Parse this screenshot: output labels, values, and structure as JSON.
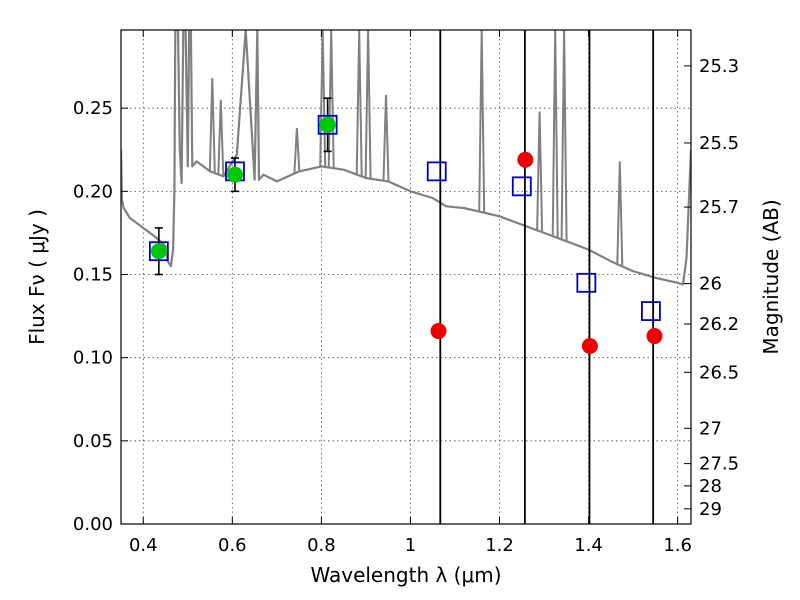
{
  "chart_data": {
    "type": "scatter",
    "title": "",
    "xlabel": "Wavelength  λ (μm)",
    "ylabel": "Flux  Fν  ( μJy )",
    "ylabel_right": "Magnitude (AB)",
    "xlim": [
      0.35,
      1.63
    ],
    "ylim": [
      0.0,
      0.297
    ],
    "grid": true,
    "x_ticks": [
      0.4,
      0.6,
      0.8,
      1.0,
      1.2,
      1.4,
      1.6
    ],
    "x_tick_labels": [
      "0.4",
      "0.6",
      "0.8",
      "1",
      "1.2",
      "1.4",
      "1.6"
    ],
    "y_ticks": [
      0.0,
      0.05,
      0.1,
      0.15,
      0.2,
      0.25
    ],
    "y_tick_labels": [
      "0.00",
      "0.05",
      "0.10",
      "0.15",
      "0.20",
      "0.25"
    ],
    "right_ticks": [
      "25.3",
      "25.5",
      "25.7",
      "26",
      "26.2",
      "26.5",
      "27",
      "27.5",
      "28",
      "29"
    ],
    "right_tick_values": [
      25.3,
      25.5,
      25.7,
      26.0,
      26.2,
      26.5,
      27.0,
      27.5,
      28.0,
      29.0
    ],
    "vertical_lines": [
      1.067,
      1.257,
      1.402,
      1.545
    ],
    "series": [
      {
        "name": "Observed photometry (green)",
        "color": "#00c800",
        "x": [
          0.435,
          0.606,
          0.814
        ],
        "y": [
          0.164,
          0.21,
          0.24
        ],
        "yerr": [
          0.014,
          0.01,
          0.016
        ]
      },
      {
        "name": "Model photometry (blue squares)",
        "color": "#0000c0",
        "x": [
          0.435,
          0.606,
          0.814,
          1.059,
          1.25,
          1.395,
          1.54
        ],
        "y": [
          0.164,
          0.212,
          0.24,
          0.212,
          0.203,
          0.145,
          0.128
        ]
      },
      {
        "name": "Observed photometry (red)",
        "color": "#ee0000",
        "x": [
          1.063,
          1.258,
          1.403,
          1.548
        ],
        "y": [
          0.116,
          0.219,
          0.107,
          0.113
        ]
      }
    ],
    "sed_model": {
      "name": "SED template",
      "color": "#808080",
      "x": [
        0.35,
        0.352,
        0.356,
        0.37,
        0.39,
        0.41,
        0.43,
        0.45,
        0.455,
        0.462,
        0.467,
        0.47,
        0.472,
        0.474,
        0.478,
        0.482,
        0.486,
        0.49,
        0.495,
        0.5,
        0.503,
        0.507,
        0.51,
        0.52,
        0.55,
        0.58,
        0.61,
        0.63,
        0.65,
        0.656,
        0.66,
        0.67,
        0.7,
        0.75,
        0.8,
        0.85,
        0.9,
        0.95,
        1.0,
        1.05,
        1.08,
        1.12,
        1.2,
        1.25,
        1.3,
        1.35,
        1.4,
        1.45,
        1.5,
        1.55,
        1.6,
        1.612,
        1.62,
        1.63
      ],
      "y": [
        0.225,
        0.195,
        0.19,
        0.184,
        0.18,
        0.176,
        0.172,
        0.167,
        0.158,
        0.155,
        0.165,
        0.2,
        0.297,
        0.297,
        0.297,
        0.225,
        0.205,
        0.297,
        0.297,
        0.215,
        0.297,
        0.297,
        0.215,
        0.218,
        0.212,
        0.209,
        0.222,
        0.297,
        0.207,
        0.297,
        0.207,
        0.21,
        0.206,
        0.212,
        0.215,
        0.213,
        0.208,
        0.206,
        0.2,
        0.196,
        0.191,
        0.19,
        0.185,
        0.18,
        0.175,
        0.17,
        0.165,
        0.158,
        0.152,
        0.148,
        0.145,
        0.144,
        0.16,
        0.225
      ]
    },
    "sed_spikes": [
      {
        "x": 0.555,
        "peak": 0.268
      },
      {
        "x": 0.574,
        "peak": 0.255
      },
      {
        "x": 0.745,
        "peak": 0.238
      },
      {
        "x": 0.803,
        "peak": 0.297
      },
      {
        "x": 0.822,
        "peak": 0.297
      },
      {
        "x": 0.885,
        "peak": 0.297
      },
      {
        "x": 0.905,
        "peak": 0.297
      },
      {
        "x": 0.945,
        "peak": 0.258
      },
      {
        "x": 1.16,
        "peak": 0.297
      },
      {
        "x": 1.29,
        "peak": 0.248
      },
      {
        "x": 1.325,
        "peak": 0.297
      },
      {
        "x": 1.345,
        "peak": 0.297
      },
      {
        "x": 1.47,
        "peak": 0.218
      }
    ]
  }
}
